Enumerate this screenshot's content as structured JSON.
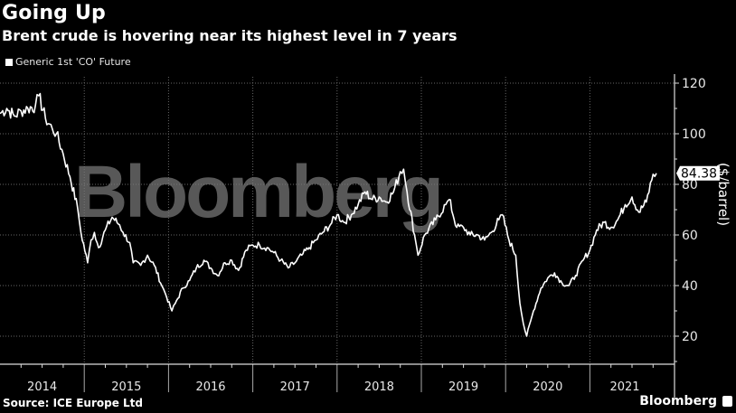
{
  "header": {
    "title": "Going Up",
    "subtitle": "Brent crude is hovering near its highest level in 7 years"
  },
  "legend": {
    "label": "Generic 1st 'CO' Future"
  },
  "footer": {
    "source": "Source: ICE Europe Ltd",
    "brand": "Bloomberg"
  },
  "watermark": "Bloomberg",
  "last_value_label": "84.38",
  "colors": {
    "background": "#000000",
    "line": "#ffffff",
    "watermark": "#7a7a7a"
  },
  "chart_data": {
    "type": "line",
    "title": "Going Up",
    "subtitle": "Brent crude is hovering near its highest level in 7 years",
    "xlabel": "",
    "ylabel": "($/barrel)",
    "ylim": [
      14,
      128
    ],
    "yticks": [
      20,
      40,
      60,
      80,
      100,
      120
    ],
    "xticks": [
      "2014",
      "2015",
      "2016",
      "2017",
      "2018",
      "2019",
      "2020",
      "2021"
    ],
    "grid": true,
    "legend_position": "top-left",
    "series": [
      {
        "name": "Generic 1st 'CO' Future",
        "last_value": 84.38,
        "points": [
          [
            2014.0,
            108
          ],
          [
            2014.08,
            110
          ],
          [
            2014.17,
            107
          ],
          [
            2014.25,
            109
          ],
          [
            2014.33,
            110
          ],
          [
            2014.42,
            111
          ],
          [
            2014.46,
            115
          ],
          [
            2014.54,
            106
          ],
          [
            2014.62,
            102
          ],
          [
            2014.67,
            100
          ],
          [
            2014.75,
            92
          ],
          [
            2014.83,
            83
          ],
          [
            2014.92,
            71
          ],
          [
            2014.96,
            61
          ],
          [
            2015.04,
            49
          ],
          [
            2015.08,
            58
          ],
          [
            2015.12,
            61
          ],
          [
            2015.17,
            55
          ],
          [
            2015.25,
            62
          ],
          [
            2015.33,
            67
          ],
          [
            2015.42,
            64
          ],
          [
            2015.46,
            61
          ],
          [
            2015.54,
            57
          ],
          [
            2015.58,
            49
          ],
          [
            2015.67,
            48
          ],
          [
            2015.75,
            52
          ],
          [
            2015.83,
            48
          ],
          [
            2015.92,
            40
          ],
          [
            2015.96,
            37
          ],
          [
            2016.04,
            30
          ],
          [
            2016.08,
            33
          ],
          [
            2016.17,
            39
          ],
          [
            2016.25,
            42
          ],
          [
            2016.33,
            47
          ],
          [
            2016.42,
            50
          ],
          [
            2016.5,
            47
          ],
          [
            2016.58,
            44
          ],
          [
            2016.67,
            49
          ],
          [
            2016.75,
            50
          ],
          [
            2016.83,
            46
          ],
          [
            2016.92,
            54
          ],
          [
            2017.0,
            56
          ],
          [
            2017.08,
            56
          ],
          [
            2017.17,
            55
          ],
          [
            2017.25,
            53
          ],
          [
            2017.33,
            50
          ],
          [
            2017.42,
            47
          ],
          [
            2017.5,
            49
          ],
          [
            2017.58,
            52
          ],
          [
            2017.67,
            55
          ],
          [
            2017.75,
            58
          ],
          [
            2017.83,
            61
          ],
          [
            2017.92,
            64
          ],
          [
            2018.0,
            68
          ],
          [
            2018.08,
            65
          ],
          [
            2018.17,
            68
          ],
          [
            2018.25,
            72
          ],
          [
            2018.33,
            77
          ],
          [
            2018.42,
            74
          ],
          [
            2018.5,
            75
          ],
          [
            2018.58,
            73
          ],
          [
            2018.67,
            77
          ],
          [
            2018.75,
            85
          ],
          [
            2018.79,
            86
          ],
          [
            2018.83,
            77
          ],
          [
            2018.92,
            60
          ],
          [
            2018.96,
            52
          ],
          [
            2019.04,
            60
          ],
          [
            2019.17,
            66
          ],
          [
            2019.29,
            72
          ],
          [
            2019.33,
            74
          ],
          [
            2019.42,
            63
          ],
          [
            2019.5,
            63
          ],
          [
            2019.58,
            60
          ],
          [
            2019.67,
            60
          ],
          [
            2019.75,
            58
          ],
          [
            2019.83,
            61
          ],
          [
            2019.92,
            66
          ],
          [
            2019.96,
            68
          ],
          [
            2020.04,
            58
          ],
          [
            2020.12,
            52
          ],
          [
            2020.17,
            33
          ],
          [
            2020.21,
            25
          ],
          [
            2020.25,
            20
          ],
          [
            2020.33,
            30
          ],
          [
            2020.42,
            39
          ],
          [
            2020.5,
            43
          ],
          [
            2020.58,
            45
          ],
          [
            2020.67,
            41
          ],
          [
            2020.75,
            40
          ],
          [
            2020.83,
            44
          ],
          [
            2020.92,
            50
          ],
          [
            2021.0,
            54
          ],
          [
            2021.08,
            62
          ],
          [
            2021.17,
            65
          ],
          [
            2021.25,
            63
          ],
          [
            2021.33,
            66
          ],
          [
            2021.42,
            72
          ],
          [
            2021.5,
            75
          ],
          [
            2021.58,
            69
          ],
          [
            2021.67,
            73
          ],
          [
            2021.75,
            84
          ],
          [
            2021.79,
            84.38
          ]
        ]
      }
    ]
  }
}
